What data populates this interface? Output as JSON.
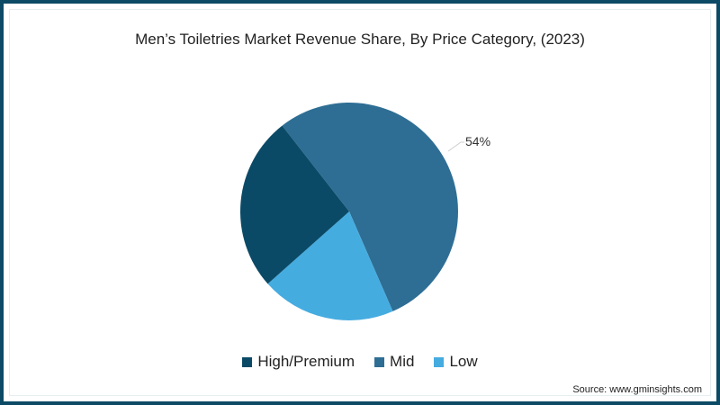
{
  "title": "Men’s Toiletries Market Revenue Share, By Price Category, (2023)",
  "source": "Source: www.gminsights.com",
  "colors": {
    "border": "#0c4a66",
    "high_premium": "#0b4a66",
    "mid": "#2e6e94",
    "low": "#45ace0"
  },
  "legend": [
    {
      "label": "High/Premium",
      "color": "#0b4a66"
    },
    {
      "label": "Mid",
      "color": "#2e6e94"
    },
    {
      "label": "Low",
      "color": "#45ace0"
    }
  ],
  "data_label": "54%",
  "chart_data": {
    "type": "pie",
    "title": "Men’s Toiletries Market Revenue Share, By Price Category, (2023)",
    "categories": [
      "High/Premium",
      "Mid",
      "Low"
    ],
    "values": [
      26,
      54,
      20
    ],
    "unit": "%",
    "data_labels": {
      "Mid": "54%"
    },
    "colors": [
      "#0b4a66",
      "#2e6e94",
      "#45ace0"
    ],
    "legend_position": "bottom",
    "start_angle_deg": -38,
    "direction": "clockwise"
  }
}
